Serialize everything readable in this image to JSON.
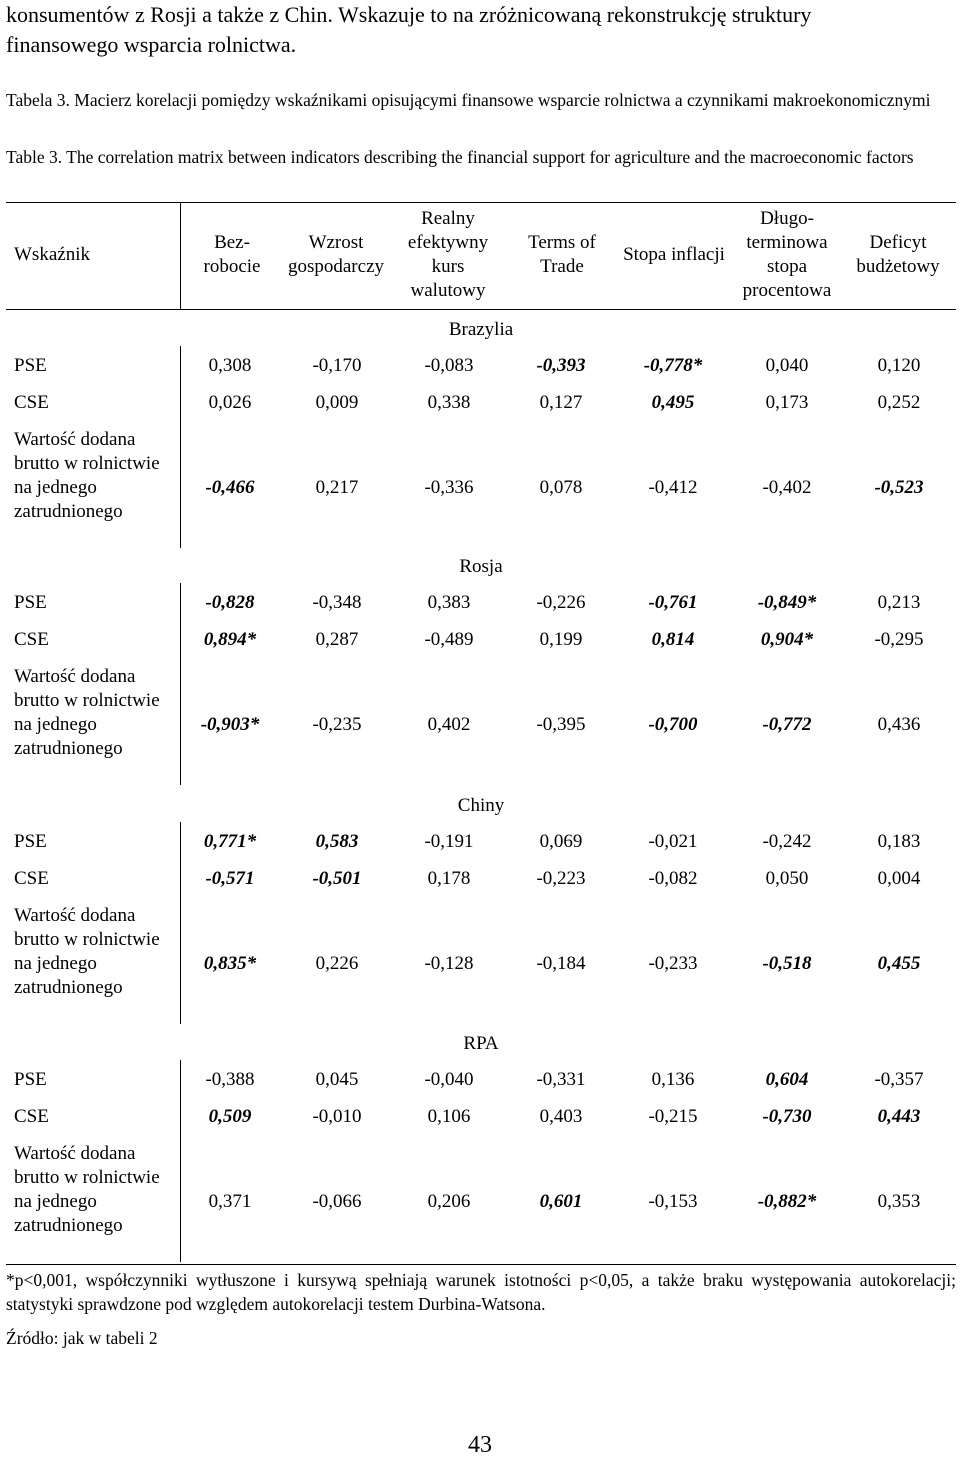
{
  "intro": {
    "line1": "konsumentów z Rosji a także z Chin. Wskazuje to na zróżnicowaną rekonstrukcję struktury",
    "line2": "finansowego wsparcia rolnictwa."
  },
  "caption_pl": "Tabela 3. Macierz korelacji pomiędzy wskaźnikami opisującymi finansowe wsparcie rolnictwa a czynnikami makroekonomicznymi",
  "caption_en": "Table 3. The correlation matrix between indicators describing the financial support for agriculture and the macroeconomic factors",
  "table": {
    "headers": {
      "indicator": "Wskaźnik",
      "h1": "Bez- robocie",
      "h2": "Wzrost gospodarczy",
      "h3": "Realny efektywny kurs walutowy",
      "h4": "Terms of Trade",
      "h5": "Stopa inflacji",
      "h6": "Długo- terminowa stopa procentowa",
      "h7": "Deficyt budżetowy"
    },
    "row_labels": {
      "pse": "PSE",
      "cse": "CSE",
      "wd": "Wartość dodana brutto w rolnictwie na jednego zatrudnionego"
    },
    "sections": [
      {
        "name": "Brazylia",
        "rows": [
          {
            "values": [
              "0,308",
              "-0,170",
              "-0,083",
              "-0,393",
              "-0,778*",
              "0,040",
              "0,120"
            ],
            "bold": [
              false,
              false,
              false,
              true,
              true,
              false,
              false
            ]
          },
          {
            "values": [
              "0,026",
              "0,009",
              "0,338",
              "0,127",
              "0,495",
              "0,173",
              "0,252"
            ],
            "bold": [
              false,
              false,
              false,
              false,
              true,
              false,
              false
            ]
          },
          {
            "values": [
              "-0,466",
              "0,217",
              "-0,336",
              "0,078",
              "-0,412",
              "-0,402",
              "-0,523"
            ],
            "bold": [
              true,
              false,
              false,
              false,
              false,
              false,
              true
            ]
          }
        ]
      },
      {
        "name": "Rosja",
        "rows": [
          {
            "values": [
              "-0,828",
              "-0,348",
              "0,383",
              "-0,226",
              "-0,761",
              "-0,849*",
              "0,213"
            ],
            "bold": [
              true,
              false,
              false,
              false,
              true,
              true,
              false
            ]
          },
          {
            "values": [
              "0,894*",
              "0,287",
              "-0,489",
              "0,199",
              "0,814",
              "0,904*",
              "-0,295"
            ],
            "bold": [
              true,
              false,
              false,
              false,
              true,
              true,
              false
            ]
          },
          {
            "values": [
              "-0,903*",
              "-0,235",
              "0,402",
              "-0,395",
              "-0,700",
              "-0,772",
              "0,436"
            ],
            "bold": [
              true,
              false,
              false,
              false,
              true,
              true,
              false
            ]
          }
        ]
      },
      {
        "name": "Chiny",
        "rows": [
          {
            "values": [
              "0,771*",
              "0,583",
              "-0,191",
              "0,069",
              "-0,021",
              "-0,242",
              "0,183"
            ],
            "bold": [
              true,
              true,
              false,
              false,
              false,
              false,
              false
            ]
          },
          {
            "values": [
              "-0,571",
              "-0,501",
              "0,178",
              "-0,223",
              "-0,082",
              "0,050",
              "0,004"
            ],
            "bold": [
              true,
              true,
              false,
              false,
              false,
              false,
              false
            ]
          },
          {
            "values": [
              "0,835*",
              "0,226",
              "-0,128",
              "-0,184",
              "-0,233",
              "-0,518",
              "0,455"
            ],
            "bold": [
              true,
              false,
              false,
              false,
              false,
              true,
              true
            ]
          }
        ]
      },
      {
        "name": "RPA",
        "rows": [
          {
            "values": [
              "-0,388",
              "0,045",
              "-0,040",
              "-0,331",
              "0,136",
              "0,604",
              "-0,357"
            ],
            "bold": [
              false,
              false,
              false,
              false,
              false,
              true,
              false
            ]
          },
          {
            "values": [
              "0,509",
              "-0,010",
              "0,106",
              "0,403",
              "-0,215",
              "-0,730",
              "0,443"
            ],
            "bold": [
              true,
              false,
              false,
              false,
              false,
              true,
              true
            ]
          },
          {
            "values": [
              "0,371",
              "-0,066",
              "0,206",
              "0,601",
              "-0,153",
              "-0,882*",
              "0,353"
            ],
            "bold": [
              false,
              false,
              false,
              true,
              false,
              true,
              false
            ]
          }
        ]
      }
    ]
  },
  "footnote": "*p<0,001, współczynniki wytłuszone i kursywą spełniają warunek istotności p<0,05, a także braku występowania autokorelacji; statystyki sprawdzone pod względem autokorelacji testem Durbina-Watsona.",
  "source": "Źródło: jak w tabeli 2",
  "page_number": "43"
}
